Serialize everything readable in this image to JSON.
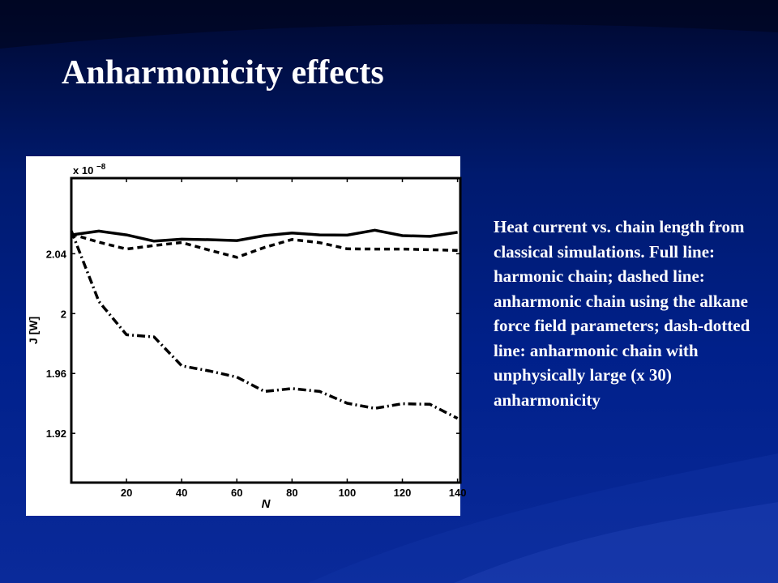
{
  "slide": {
    "title": "Anharmonicity effects",
    "caption": "Heat current vs. chain length from classical simulations. Full line: harmonic chain; dashed line: anharmonic chain using the alkane force field parameters; dash-dotted line: anharmonic chain with unphysically large (x 30) anharmonicity"
  },
  "colors": {
    "background": "#001a6e",
    "text": "#ffffff",
    "chart_bg": "#ffffff",
    "lines": "#000000"
  },
  "chart_data": {
    "type": "line",
    "title": "",
    "xlabel": "N",
    "ylabel": "J [W]",
    "y_multiplier": "x 10",
    "y_multiplier_exp": "−8",
    "xlim": [
      0,
      141
    ],
    "ylim": [
      1.8871,
      2.0905
    ],
    "x_ticks": [
      20,
      40,
      60,
      80,
      100,
      120,
      140
    ],
    "y_ticks": [
      1.92,
      1.96,
      2,
      2.04
    ],
    "y_tick_labels": [
      "1.92",
      "1.96",
      "2",
      "2.04"
    ],
    "grid": false,
    "series": [
      {
        "style": "solid",
        "x": [
          0,
          10,
          20,
          30,
          40,
          50,
          60,
          70,
          80,
          90,
          100,
          110,
          120,
          130,
          140
        ],
        "y": [
          2.0526,
          2.0551,
          2.0526,
          2.0484,
          2.0497,
          2.0494,
          2.0488,
          2.0521,
          2.0539,
          2.0526,
          2.0524,
          2.0557,
          2.0521,
          2.0516,
          2.0543
        ]
      },
      {
        "style": "dashed",
        "x": [
          0,
          10,
          20,
          30,
          40,
          50,
          60,
          70,
          80,
          90,
          100,
          110,
          120,
          130,
          140
        ],
        "y": [
          2.0531,
          2.0477,
          2.0431,
          2.0455,
          2.0475,
          2.0424,
          2.0376,
          2.0442,
          2.0495,
          2.0474,
          2.0433,
          2.0431,
          2.0431,
          2.0427,
          2.0422
        ]
      },
      {
        "style": "dashdot",
        "x": [
          0,
          10,
          20,
          30,
          40,
          50,
          60,
          70,
          80,
          90,
          100,
          110,
          120,
          130,
          140
        ],
        "y": [
          2.0553,
          2.0081,
          1.9859,
          1.9844,
          1.9651,
          1.9617,
          1.9576,
          1.948,
          1.9499,
          1.948,
          1.9401,
          1.9367,
          1.9398,
          1.9394,
          1.93
        ]
      }
    ]
  }
}
